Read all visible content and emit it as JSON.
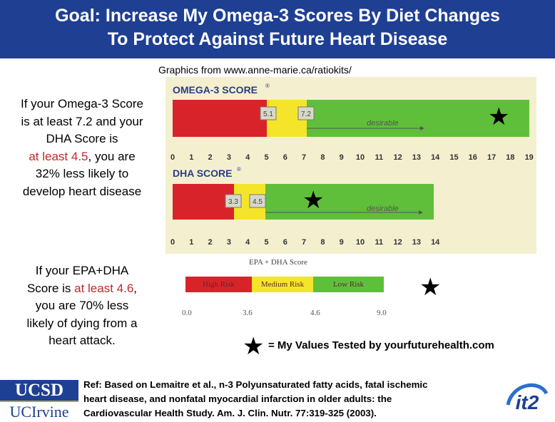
{
  "title": {
    "line1": "Goal: Increase My Omega-3 Scores By Diet Changes",
    "line2": "To Protect Against Future Heart Disease"
  },
  "source": "Graphics from www.anne-marie.ca/ratiokits/",
  "text1": {
    "line1": "If your Omega-3 Score",
    "line2": "is at least 7.2 and your",
    "line3": "DHA Score is",
    "line4_red": "at least 4.5",
    "line4_rest": ", you are",
    "line5": "32% less likely to",
    "line6": "develop heart disease"
  },
  "text2": {
    "line1": "If your EPA+DHA",
    "line2_pre": "Score is ",
    "line2_red": "at least 4.6",
    "line2_post": ",",
    "line3": "you are 70% less",
    "line4": "likely of dying from a",
    "line5": "heart attack."
  },
  "omega3": {
    "label": "OMEGA-3 SCORE",
    "marker1": "5.1",
    "marker2": "7.2",
    "desirable": "desirable",
    "ticks": [
      "0",
      "1",
      "2",
      "3",
      "4",
      "5",
      "6",
      "7",
      "8",
      "9",
      "10",
      "11",
      "12",
      "13",
      "14",
      "15",
      "16",
      "17",
      "18",
      "19"
    ]
  },
  "dha": {
    "label": "DHA SCORE",
    "marker1": "3.3",
    "marker2": "4.5",
    "desirable": "desirable",
    "ticks": [
      "0",
      "1",
      "2",
      "3",
      "4",
      "5",
      "6",
      "7",
      "8",
      "9",
      "10",
      "11",
      "12",
      "13",
      "14"
    ]
  },
  "epa": {
    "title": "EPA + DHA Score",
    "segments": [
      "High Risk",
      "Medium Risk",
      "Low Risk"
    ],
    "ticks": [
      "0.0",
      "3.6",
      "4.6",
      "9.0"
    ]
  },
  "legend": "= My Values Tested by yourfuturehealth.com",
  "ref": {
    "line1": "Ref: Based on Lemaitre et al., n-3 Polyunsaturated fatty acids, fatal ischemic",
    "line2": "heart disease, and nonfatal myocardial infarction in older adults: the",
    "line3": "Cardiovascular Health Study. Am. J. Clin. Nutr. 77:319-325 (2003)."
  },
  "logos": {
    "ucsd": "UCSD",
    "uci": "UCIrvine",
    "it2": "it2"
  },
  "colors": {
    "title_bg": "#1f3f93",
    "high_risk": "#d9232a",
    "medium_risk": "#f4e52a",
    "low_risk": "#5fbf3a",
    "highlight": "#c0282a"
  }
}
